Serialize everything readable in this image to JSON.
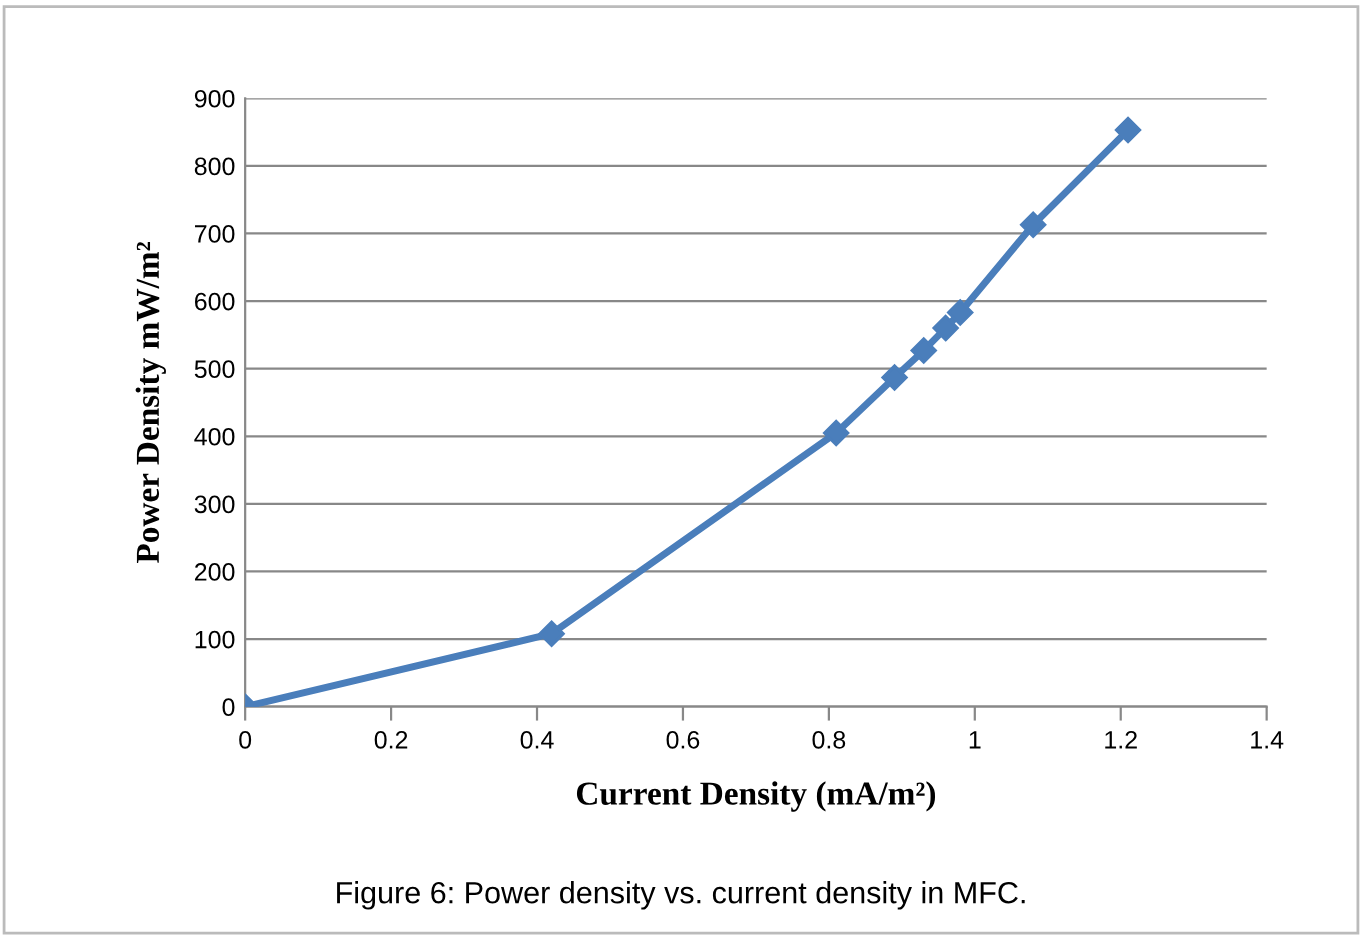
{
  "chart_data": {
    "type": "line",
    "xlabel": "Current Density (mA/m²)",
    "ylabel": "Power Density mW/m²",
    "annotations": [
      "Figure 6: Power density vs. current density in MFC."
    ],
    "series": [
      {
        "color": "#4a7ebb",
        "x": [
          0,
          0.42,
          0.81,
          0.89,
          0.93,
          0.96,
          0.98,
          1.08,
          1.21
        ],
        "values": [
          0,
          108,
          405,
          487,
          527,
          560,
          583,
          713,
          853
        ]
      }
    ],
    "xlim": [
      0,
      1.4
    ],
    "xticks": [
      0,
      0.2,
      0.4,
      0.6,
      0.8,
      1,
      1.2,
      1.4
    ],
    "ylim": [
      0,
      900
    ],
    "yticks": [
      0,
      100,
      200,
      300,
      400,
      500,
      600,
      700,
      800,
      900
    ],
    "grid": "y",
    "legend": false,
    "marker": "diamond",
    "line_style": "solid"
  }
}
